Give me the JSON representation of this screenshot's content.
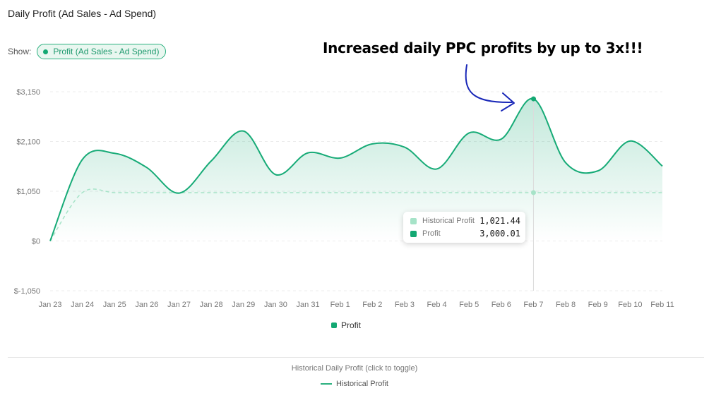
{
  "header": {
    "title": "Daily Profit (Ad Sales - Ad Spend)",
    "show_label": "Show:",
    "show_pill": "Profit (Ad Sales - Ad Spend)"
  },
  "annotation": "Increased daily PPC profits by up to 3x!!!",
  "tooltip": {
    "rows": [
      {
        "name": "Historical Profit",
        "value": "1,021.44",
        "color": "#a6e3c8"
      },
      {
        "name": "Profit",
        "value": "3,000.01",
        "color": "#13a872"
      }
    ]
  },
  "legend": {
    "profit": "Profit"
  },
  "footer": {
    "caption": "Historical Daily Profit (click to toggle)",
    "legend": "Historical Profit"
  },
  "colors": {
    "accent": "#13a872",
    "area": "#13a872",
    "annotation_arrow": "#1a28b8"
  },
  "chart_data": {
    "type": "area",
    "categories": [
      "Jan 23",
      "Jan 24",
      "Jan 25",
      "Jan 26",
      "Jan 27",
      "Jan 28",
      "Jan 29",
      "Jan 30",
      "Jan 31",
      "Feb 1",
      "Feb 2",
      "Feb 3",
      "Feb 4",
      "Feb 5",
      "Feb 6",
      "Feb 7",
      "Feb 8",
      "Feb 9",
      "Feb 10",
      "Feb 11"
    ],
    "y_ticks": [
      3150,
      2100,
      1050,
      0,
      -1050
    ],
    "y_tick_labels": [
      "$3,150",
      "$2,100",
      "$1,050",
      "$0",
      "$-1,050"
    ],
    "ylim": [
      -1050,
      3150
    ],
    "grid": true,
    "legend_position": "bottom",
    "series": [
      {
        "name": "Profit",
        "values": [
          0,
          1720,
          1850,
          1550,
          1010,
          1690,
          2320,
          1400,
          1860,
          1750,
          2050,
          1980,
          1520,
          2280,
          2150,
          3000,
          1650,
          1480,
          2110,
          1580
        ]
      },
      {
        "name": "Historical Profit",
        "values": [
          0,
          1021,
          1021,
          1021,
          1021,
          1021,
          1021,
          1021,
          1021,
          1021,
          1021,
          1021,
          1021,
          1021,
          1021,
          1021,
          1021,
          1021,
          1021,
          1021
        ]
      }
    ],
    "highlight": {
      "category": "Feb 7"
    }
  }
}
